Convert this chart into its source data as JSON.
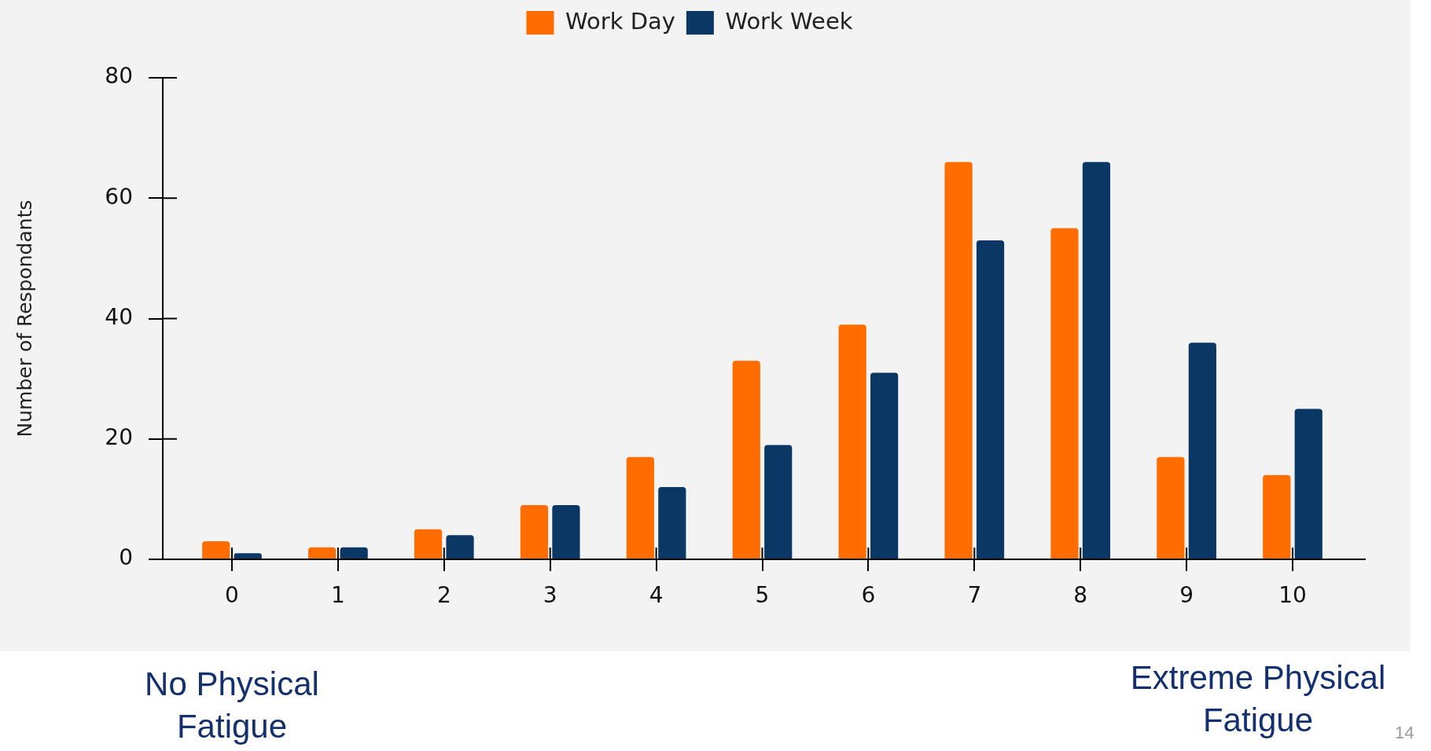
{
  "chart_data": {
    "type": "bar",
    "categories": [
      "0",
      "1",
      "2",
      "3",
      "4",
      "5",
      "6",
      "7",
      "8",
      "9",
      "10"
    ],
    "series": [
      {
        "name": "Work Day",
        "color": "#ff6c00",
        "values": [
          3,
          2,
          5,
          9,
          17,
          33,
          39,
          66,
          55,
          17,
          14
        ]
      },
      {
        "name": "Work Week",
        "color": "#0a3764",
        "values": [
          1,
          2,
          4,
          9,
          12,
          19,
          31,
          53,
          66,
          36,
          25
        ]
      }
    ],
    "ylabel": "Number of Respondants",
    "ylim": [
      0,
      80
    ],
    "yticks": [
      0,
      20,
      40,
      60,
      80
    ],
    "legend": "top",
    "annotations": [
      "No Physical Fatigue",
      "Extreme Physical Fatigue",
      "14"
    ]
  }
}
